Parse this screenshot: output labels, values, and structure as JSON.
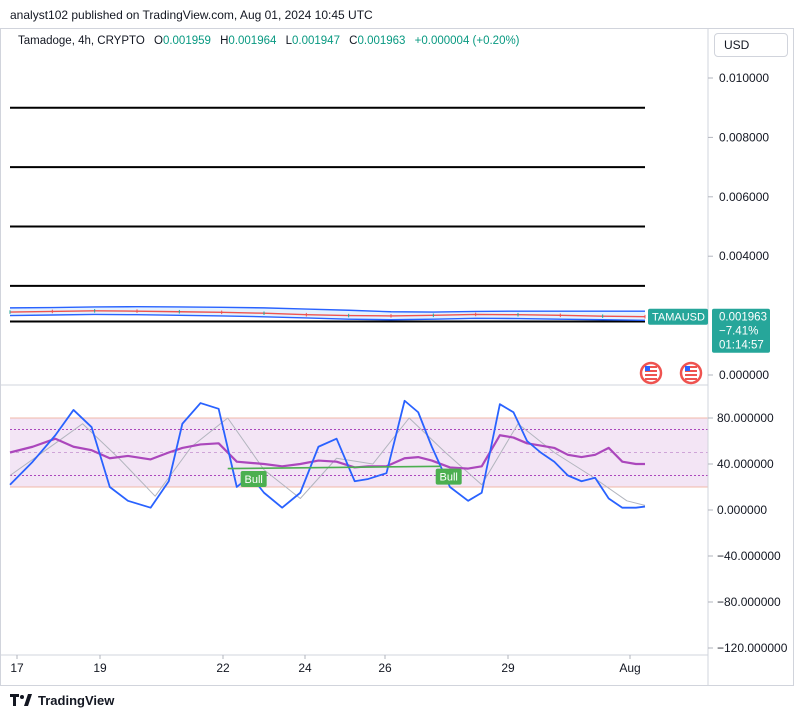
{
  "header": {
    "published": "analyst102 published on TradingView.com, Aug 01, 2024 10:45 UTC"
  },
  "legend": {
    "symbol": "Tamadoge, 4h, CRYPTO",
    "open_label": "O",
    "open": "0.001959",
    "high_label": "H",
    "high": "0.001964",
    "low_label": "L",
    "low": "0.001947",
    "close_label": "C",
    "close": "0.001963",
    "change": "+0.000004 (+0.20%)"
  },
  "currency_button": {
    "label": "USD"
  },
  "price_tag": {
    "symbol": "TAMAUSD",
    "price": "0.001963",
    "change_pct": "−7.41%",
    "countdown": "01:14:57"
  },
  "footer": {
    "brand": "TradingView"
  },
  "colors": {
    "accent_green": "#26a69a",
    "stoch_k": "#2962ff",
    "stoch_d": "#b2b5be",
    "rsi": "#ab47bc",
    "band": "#f3e5f5",
    "bull_label": "#4caf50"
  },
  "chart_data": [
    {
      "type": "line",
      "panel": "price",
      "y_tick_labels": [
        "0.010000",
        "0.008000",
        "0.006000",
        "0.004000",
        "0.000000"
      ],
      "y_ticks": [
        0.01,
        0.008,
        0.006,
        0.004,
        0.0
      ],
      "ylim": [
        0.0,
        0.01099
      ],
      "horizontal_levels": [
        0.009,
        0.007,
        0.005,
        0.003,
        0.0018
      ],
      "x_tick_labels": [
        "17",
        "19",
        "22",
        "24",
        "26",
        "29",
        "Aug"
      ],
      "series": [
        {
          "role": "bollinger-upper",
          "values": [
            0.00226,
            0.00227,
            0.00229,
            0.0023,
            0.00229,
            0.00228,
            0.00226,
            0.00222,
            0.00218,
            0.00213,
            0.00212,
            0.00214,
            0.00215,
            0.00215,
            0.00215,
            0.00215
          ]
        },
        {
          "role": "price",
          "values": [
            0.00212,
            0.00214,
            0.00216,
            0.00215,
            0.00213,
            0.00211,
            0.00208,
            0.00203,
            0.002,
            0.00199,
            0.00201,
            0.00204,
            0.00203,
            0.00201,
            0.00198,
            0.001963
          ]
        },
        {
          "role": "bollinger-lower",
          "values": [
            0.002,
            0.00202,
            0.00204,
            0.00203,
            0.00201,
            0.00199,
            0.00196,
            0.00192,
            0.00188,
            0.00186,
            0.00188,
            0.00191,
            0.0019,
            0.00188,
            0.00186,
            0.00184
          ]
        }
      ]
    },
    {
      "type": "line",
      "panel": "oscillators",
      "y_tick_labels": [
        "80.000000",
        "40.000000",
        "0.000000",
        "−40.000000",
        "−80.000000",
        "−120.000000"
      ],
      "y_ticks": [
        80,
        40,
        0,
        -40,
        -80,
        -120
      ],
      "ylim": [
        -129,
        102
      ],
      "bands": {
        "outer": [
          20,
          80
        ],
        "inner_dotted": [
          30,
          70
        ],
        "mid": 50
      },
      "series": [
        {
          "name": "stoch-k",
          "x": [
            0,
            0.5,
            1,
            1.4,
            1.8,
            2.2,
            2.6,
            3.1,
            3.5,
            3.8,
            4.2,
            4.6,
            5.0,
            5.3,
            5.6,
            6.0,
            6.4,
            6.8,
            7.2,
            7.6,
            7.9,
            8.3,
            8.7,
            9.0,
            9.3,
            9.7,
            10.1,
            10.4,
            10.8,
            11.1,
            11.4,
            11.7,
            12.0,
            12.3,
            12.6,
            12.9,
            13.2,
            13.5,
            13.8,
            14.0
          ],
          "values": [
            22,
            42,
            65,
            87,
            72,
            20,
            8,
            2,
            25,
            75,
            93,
            88,
            20,
            30,
            15,
            2,
            15,
            55,
            62,
            25,
            27,
            32,
            95,
            85,
            55,
            20,
            8,
            15,
            92,
            85,
            60,
            50,
            42,
            30,
            25,
            28,
            10,
            2,
            2,
            3
          ]
        },
        {
          "name": "stoch-d",
          "x": [
            0,
            1,
            1.6,
            2.4,
            3.2,
            4.0,
            4.8,
            5.6,
            6.4,
            7.2,
            8.0,
            8.8,
            9.6,
            10.4,
            11.2,
            12.0,
            12.8,
            13.6,
            14.0
          ],
          "values": [
            30,
            58,
            75,
            45,
            12,
            55,
            80,
            35,
            10,
            45,
            40,
            80,
            50,
            22,
            75,
            50,
            30,
            8,
            4
          ]
        },
        {
          "name": "rsi",
          "x": [
            0,
            0.5,
            1,
            1.4,
            1.8,
            2.2,
            2.6,
            3.1,
            3.5,
            3.8,
            4.2,
            4.6,
            5.0,
            5.3,
            5.6,
            6.0,
            6.4,
            6.8,
            7.2,
            7.6,
            7.9,
            8.3,
            8.7,
            9.0,
            9.3,
            9.7,
            10.1,
            10.4,
            10.8,
            11.1,
            11.4,
            11.7,
            12.0,
            12.3,
            12.6,
            12.9,
            13.2,
            13.5,
            13.8,
            14.0
          ],
          "values": [
            50,
            55,
            62,
            55,
            52,
            45,
            47,
            44,
            50,
            54,
            57,
            58,
            42,
            41,
            40,
            38,
            40,
            43,
            42,
            37,
            38,
            38,
            45,
            46,
            43,
            37,
            36,
            38,
            65,
            63,
            58,
            56,
            54,
            48,
            46,
            48,
            54,
            42,
            40,
            40
          ]
        }
      ],
      "annotations": [
        {
          "text": "Bull",
          "x": 5.35,
          "y": 27
        },
        {
          "text": "Bull",
          "x": 9.65,
          "y": 29
        }
      ],
      "divergence_line": {
        "x": [
          4.8,
          9.5
        ],
        "values": [
          36,
          38
        ]
      }
    }
  ]
}
